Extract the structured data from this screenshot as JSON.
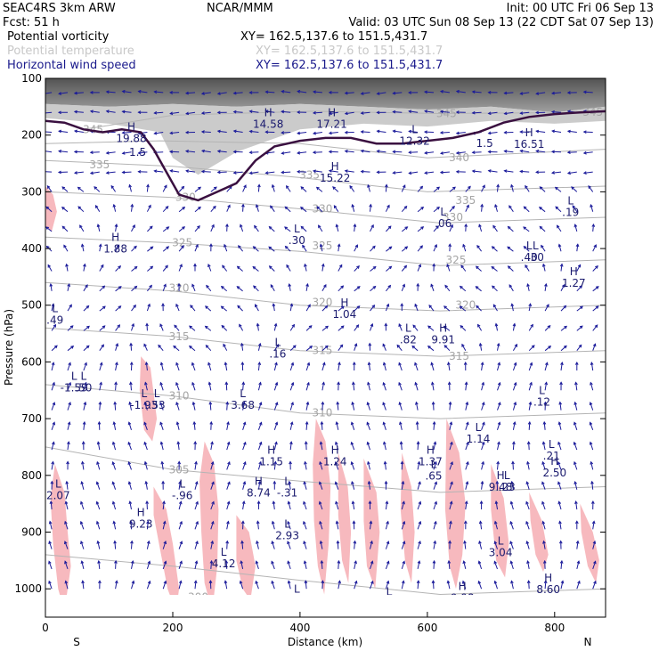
{
  "header": {
    "model": "SEAC4RS  3km ARW",
    "org": "NCAR/MMM",
    "init": "Init: 00 UTC Fri 06 Sep 13",
    "fcst": "Fcst:    51 h",
    "valid": "Valid: 03 UTC Sun 08 Sep 13 (22 CDT Sat 07 Sep 13)",
    "fields": [
      {
        "name": "Potential vorticity",
        "xy": "XY= 162.5,137.6 to 151.5,431.7",
        "color": "#000000"
      },
      {
        "name": "Potential temperature",
        "xy": "XY= 162.5,137.6 to 151.5,431.7",
        "color": "#c8c8c8"
      },
      {
        "name": "Horizontal wind speed",
        "xy": "XY= 162.5,137.6 to 151.5,431.7",
        "color": "#1a1a8c"
      }
    ]
  },
  "colors": {
    "frame": "#000000",
    "theta": "#b4b4b4",
    "wind": "#1a1a9a",
    "pv_line": "#3a1040",
    "precip": "#f7b9be",
    "upper_shade": "#6e6e6e"
  },
  "chart_data": {
    "type": "cross-section",
    "xlabel": "Distance (km)",
    "ylabel": "Pressure (hPa)",
    "xlim": [
      0,
      880
    ],
    "ylim": [
      1050,
      100
    ],
    "x_ticks": [
      "0",
      "200",
      "400",
      "600",
      "800"
    ],
    "y_ticks": [
      "100",
      "200",
      "300",
      "400",
      "500",
      "600",
      "700",
      "800",
      "900",
      "1000"
    ],
    "end_labels": {
      "left": "S",
      "right": "N"
    },
    "theta_contours": [
      {
        "value": "345",
        "points": [
          [
            60,
            190
          ],
          [
            200,
            165
          ],
          [
            420,
            158
          ],
          [
            620,
            162
          ],
          [
            880,
            160
          ]
        ],
        "labels": [
          [
            75,
            190
          ],
          [
            630,
            162
          ],
          [
            860,
            160
          ]
        ]
      },
      {
        "value": "340",
        "points": [
          [
            0,
            215
          ],
          [
            180,
            210
          ],
          [
            400,
            215
          ],
          [
            600,
            240
          ],
          [
            880,
            225
          ]
        ],
        "labels": [
          [
            650,
            240
          ]
        ]
      },
      {
        "value": "335",
        "points": [
          [
            0,
            245
          ],
          [
            200,
            255
          ],
          [
            400,
            275
          ],
          [
            600,
            300
          ],
          [
            880,
            290
          ]
        ],
        "labels": [
          [
            85,
            252
          ],
          [
            415,
            270
          ],
          [
            660,
            315
          ]
        ]
      },
      {
        "value": "330",
        "points": [
          [
            0,
            300
          ],
          [
            200,
            310
          ],
          [
            400,
            330
          ],
          [
            620,
            355
          ],
          [
            880,
            345
          ]
        ],
        "labels": [
          [
            220,
            310
          ],
          [
            435,
            330
          ],
          [
            640,
            345
          ]
        ]
      },
      {
        "value": "325",
        "points": [
          [
            0,
            380
          ],
          [
            200,
            390
          ],
          [
            400,
            405
          ],
          [
            620,
            430
          ],
          [
            880,
            420
          ]
        ],
        "labels": [
          [
            215,
            390
          ],
          [
            435,
            395
          ],
          [
            645,
            420
          ]
        ]
      },
      {
        "value": "320",
        "points": [
          [
            0,
            460
          ],
          [
            200,
            475
          ],
          [
            400,
            500
          ],
          [
            620,
            510
          ],
          [
            880,
            500
          ]
        ],
        "labels": [
          [
            210,
            470
          ],
          [
            435,
            495
          ],
          [
            660,
            500
          ]
        ]
      },
      {
        "value": "315",
        "points": [
          [
            0,
            540
          ],
          [
            200,
            555
          ],
          [
            400,
            580
          ],
          [
            620,
            590
          ],
          [
            880,
            580
          ]
        ],
        "labels": [
          [
            210,
            555
          ],
          [
            435,
            580
          ],
          [
            650,
            590
          ]
        ]
      },
      {
        "value": "310",
        "points": [
          [
            0,
            640
          ],
          [
            200,
            660
          ],
          [
            400,
            690
          ],
          [
            620,
            700
          ],
          [
            880,
            690
          ]
        ],
        "labels": [
          [
            210,
            660
          ],
          [
            435,
            690
          ]
        ]
      },
      {
        "value": "305",
        "points": [
          [
            0,
            750
          ],
          [
            200,
            790
          ],
          [
            400,
            810
          ],
          [
            620,
            830
          ],
          [
            880,
            820
          ]
        ],
        "labels": [
          [
            210,
            790
          ]
        ]
      },
      {
        "value": "300",
        "points": [
          [
            0,
            940
          ],
          [
            200,
            960
          ],
          [
            400,
            985
          ],
          [
            620,
            1010
          ],
          [
            880,
            1000
          ]
        ],
        "labels": [
          [
            240,
            1015
          ]
        ]
      }
    ],
    "pv_contour": {
      "value": "1.5",
      "points": [
        [
          0,
          175
        ],
        [
          30,
          178
        ],
        [
          60,
          190
        ],
        [
          90,
          195
        ],
        [
          120,
          190
        ],
        [
          150,
          195
        ],
        [
          170,
          225
        ],
        [
          190,
          265
        ],
        [
          210,
          305
        ],
        [
          240,
          315
        ],
        [
          270,
          300
        ],
        [
          300,
          285
        ],
        [
          330,
          245
        ],
        [
          360,
          220
        ],
        [
          400,
          210
        ],
        [
          440,
          205
        ],
        [
          480,
          205
        ],
        [
          520,
          215
        ],
        [
          560,
          215
        ],
        [
          600,
          210
        ],
        [
          640,
          205
        ],
        [
          680,
          195
        ],
        [
          720,
          178
        ],
        [
          760,
          168
        ],
        [
          800,
          163
        ],
        [
          840,
          160
        ],
        [
          880,
          158
        ]
      ],
      "labels": [
        [
          145,
          230
        ],
        [
          690,
          215
        ]
      ]
    },
    "extrema": [
      {
        "type": "H",
        "value": "19.88",
        "x": 135,
        "y": 195
      },
      {
        "type": "H",
        "value": "14.58",
        "x": 350,
        "y": 170
      },
      {
        "type": "H",
        "value": "17.21",
        "x": 450,
        "y": 170
      },
      {
        "type": "L",
        "value": "12.32",
        "x": 580,
        "y": 200
      },
      {
        "type": "H",
        "value": "16.51",
        "x": 760,
        "y": 205
      },
      {
        "type": "H",
        "value": "15.22",
        "x": 455,
        "y": 265
      },
      {
        "type": "L",
        "value": ".06",
        "x": 625,
        "y": 345
      },
      {
        "type": "L",
        "value": ".19",
        "x": 825,
        "y": 325
      },
      {
        "type": "H",
        "value": "1.88",
        "x": 110,
        "y": 390
      },
      {
        "type": "L",
        "value": ".30",
        "x": 395,
        "y": 375
      },
      {
        "type": "L",
        "value": ".40",
        "x": 760,
        "y": 405
      },
      {
        "type": "L",
        "value": ".30",
        "x": 770,
        "y": 405
      },
      {
        "type": "H",
        "value": "1.27",
        "x": 830,
        "y": 450
      },
      {
        "type": "H",
        "value": "1.04",
        "x": 470,
        "y": 505
      },
      {
        "type": "L",
        "value": ".82",
        "x": 570,
        "y": 550
      },
      {
        "type": "H",
        "value": "9.91",
        "x": 625,
        "y": 550
      },
      {
        "type": "L",
        "value": ".49",
        "x": 15,
        "y": 515
      },
      {
        "type": "L",
        "value": ".16",
        "x": 365,
        "y": 575
      },
      {
        "type": "L",
        "value": "-1.59",
        "x": 45,
        "y": 635
      },
      {
        "type": "L",
        "value": "-1.93",
        "x": 155,
        "y": 665
      },
      {
        "type": "L",
        "value": ".50",
        "x": 60,
        "y": 635
      },
      {
        "type": "L",
        "value": ".53",
        "x": 175,
        "y": 665
      },
      {
        "type": "L",
        "value": "3.68",
        "x": 310,
        "y": 665
      },
      {
        "type": "L",
        "value": ".12",
        "x": 780,
        "y": 660
      },
      {
        "type": "L",
        "value": "1.14",
        "x": 680,
        "y": 725
      },
      {
        "type": "L",
        "value": ".21",
        "x": 795,
        "y": 755
      },
      {
        "type": "H",
        "value": "1.15",
        "x": 355,
        "y": 765
      },
      {
        "type": "H",
        "value": "1.24",
        "x": 455,
        "y": 765
      },
      {
        "type": "H",
        "value": "1.37",
        "x": 605,
        "y": 765
      },
      {
        "type": "H",
        "value": "2.50",
        "x": 800,
        "y": 785
      },
      {
        "type": "L",
        "value": ".65",
        "x": 610,
        "y": 790
      },
      {
        "type": "H",
        "value": "9.48",
        "x": 715,
        "y": 810
      },
      {
        "type": "L",
        "value": ".23",
        "x": 725,
        "y": 810
      },
      {
        "type": "H",
        "value": "8.74",
        "x": 335,
        "y": 820
      },
      {
        "type": "L",
        "value": "-.31",
        "x": 380,
        "y": 820
      },
      {
        "type": "L",
        "value": "-.96",
        "x": 215,
        "y": 825
      },
      {
        "type": "L",
        "value": "2.07",
        "x": 20,
        "y": 825
      },
      {
        "type": "H",
        "value": "9.23",
        "x": 150,
        "y": 875
      },
      {
        "type": "L",
        "value": "2.93",
        "x": 380,
        "y": 895
      },
      {
        "type": "L",
        "value": "3.04",
        "x": 715,
        "y": 925
      },
      {
        "type": "L",
        "value": "4.12",
        "x": 280,
        "y": 945
      },
      {
        "type": "L",
        "value": "2.18",
        "x": 395,
        "y": 1010
      },
      {
        "type": "L",
        "value": "1.16",
        "x": 540,
        "y": 1015
      },
      {
        "type": "H",
        "value": "9.98",
        "x": 655,
        "y": 1005
      },
      {
        "type": "H",
        "value": "8.60",
        "x": 790,
        "y": 990
      }
    ],
    "precip_regions": [
      [
        [
          0,
          290
        ],
        [
          12,
          305
        ],
        [
          18,
          335
        ],
        [
          10,
          370
        ],
        [
          0,
          360
        ]
      ],
      [
        [
          15,
          780
        ],
        [
          30,
          830
        ],
        [
          35,
          900
        ],
        [
          40,
          960
        ],
        [
          30,
          1040
        ],
        [
          20,
          1000
        ],
        [
          12,
          920
        ],
        [
          8,
          840
        ]
      ],
      [
        [
          150,
          590
        ],
        [
          165,
          610
        ],
        [
          175,
          700
        ],
        [
          168,
          740
        ],
        [
          155,
          720
        ],
        [
          148,
          650
        ]
      ],
      [
        [
          170,
          820
        ],
        [
          190,
          860
        ],
        [
          200,
          920
        ],
        [
          210,
          1000
        ],
        [
          205,
          1040
        ],
        [
          192,
          1000
        ],
        [
          180,
          930
        ],
        [
          170,
          870
        ]
      ],
      [
        [
          250,
          740
        ],
        [
          265,
          780
        ],
        [
          272,
          860
        ],
        [
          270,
          960
        ],
        [
          262,
          1040
        ],
        [
          250,
          990
        ],
        [
          245,
          900
        ],
        [
          242,
          810
        ]
      ],
      [
        [
          300,
          870
        ],
        [
          320,
          900
        ],
        [
          330,
          960
        ],
        [
          322,
          1020
        ],
        [
          310,
          1000
        ],
        [
          300,
          950
        ]
      ],
      [
        [
          425,
          700
        ],
        [
          440,
          740
        ],
        [
          448,
          820
        ],
        [
          445,
          920
        ],
        [
          438,
          1010
        ],
        [
          428,
          960
        ],
        [
          422,
          880
        ],
        [
          420,
          780
        ]
      ],
      [
        [
          460,
          760
        ],
        [
          475,
          820
        ],
        [
          480,
          900
        ],
        [
          476,
          990
        ],
        [
          466,
          950
        ],
        [
          460,
          870
        ]
      ],
      [
        [
          500,
          770
        ],
        [
          520,
          830
        ],
        [
          525,
          900
        ],
        [
          518,
          1000
        ],
        [
          505,
          960
        ],
        [
          500,
          880
        ]
      ],
      [
        [
          560,
          760
        ],
        [
          575,
          820
        ],
        [
          580,
          900
        ],
        [
          575,
          990
        ],
        [
          565,
          950
        ],
        [
          558,
          860
        ]
      ],
      [
        [
          630,
          700
        ],
        [
          650,
          760
        ],
        [
          660,
          850
        ],
        [
          655,
          940
        ],
        [
          645,
          1000
        ],
        [
          635,
          960
        ],
        [
          628,
          860
        ]
      ],
      [
        [
          700,
          780
        ],
        [
          720,
          840
        ],
        [
          728,
          920
        ],
        [
          722,
          980
        ],
        [
          708,
          950
        ],
        [
          700,
          860
        ]
      ],
      [
        [
          760,
          830
        ],
        [
          780,
          880
        ],
        [
          790,
          940
        ],
        [
          782,
          970
        ],
        [
          770,
          940
        ],
        [
          762,
          880
        ]
      ],
      [
        [
          840,
          850
        ],
        [
          860,
          900
        ],
        [
          870,
          950
        ],
        [
          865,
          990
        ],
        [
          852,
          960
        ],
        [
          842,
          900
        ]
      ]
    ],
    "upper_shading": [
      {
        "level": "dark",
        "points": [
          [
            0,
            100
          ],
          [
            880,
            100
          ],
          [
            880,
            150
          ],
          [
            800,
            160
          ],
          [
            700,
            150
          ],
          [
            600,
            155
          ],
          [
            500,
            150
          ],
          [
            400,
            145
          ],
          [
            300,
            150
          ],
          [
            200,
            145
          ],
          [
            100,
            150
          ],
          [
            0,
            145
          ]
        ]
      },
      {
        "level": "medium",
        "points": [
          [
            0,
            145
          ],
          [
            100,
            150
          ],
          [
            200,
            145
          ],
          [
            300,
            150
          ],
          [
            400,
            145
          ],
          [
            500,
            150
          ],
          [
            600,
            155
          ],
          [
            700,
            150
          ],
          [
            800,
            160
          ],
          [
            880,
            150
          ],
          [
            880,
            175
          ],
          [
            800,
            180
          ],
          [
            700,
            175
          ],
          [
            600,
            185
          ],
          [
            500,
            180
          ],
          [
            400,
            190
          ],
          [
            300,
            230
          ],
          [
            240,
            270
          ],
          [
            200,
            240
          ],
          [
            180,
            195
          ],
          [
            100,
            180
          ],
          [
            0,
            170
          ]
        ]
      }
    ],
    "wind_field": {
      "x_start": 10,
      "x_step": 25,
      "p_start": 125,
      "p_step": 35,
      "upper_direction": "westward",
      "lower_direction": "northward"
    }
  }
}
